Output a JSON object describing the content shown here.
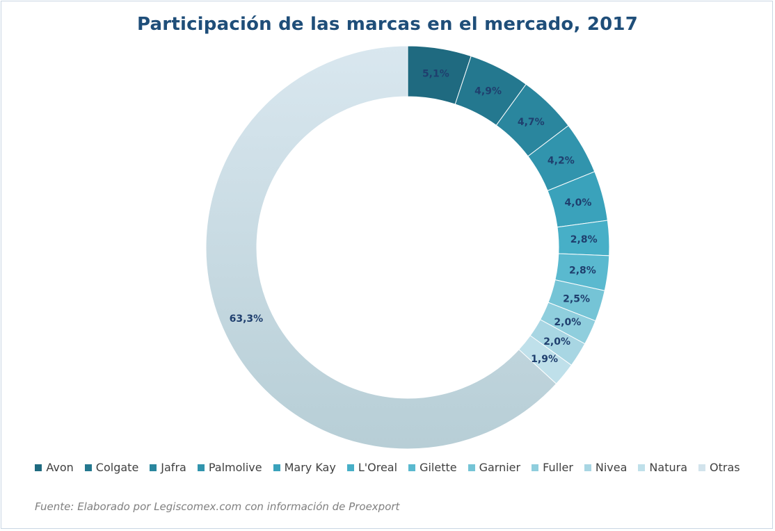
{
  "chart_data": {
    "type": "pie",
    "title": "Participación de las marcas en el mercado, 2017",
    "categories": [
      "Avon",
      "Colgate",
      "Jafra",
      "Palmolive",
      "Mary Kay",
      "L'Oreal",
      "Gilette",
      "Garnier",
      "Fuller",
      "Nivea",
      "Natura",
      "Otras"
    ],
    "values": [
      5.1,
      4.9,
      4.7,
      4.2,
      4.0,
      2.8,
      2.8,
      2.5,
      2.0,
      2.0,
      1.9,
      63.3
    ],
    "data_labels": [
      "5,1%",
      "4,9%",
      "4,7%",
      "4,2%",
      "4,0%",
      "2,8%",
      "2,8%",
      "2,5%",
      "2,0%",
      "2,0%",
      "1,9%",
      "63,3%"
    ],
    "colors": [
      "#1f6a80",
      "#24788f",
      "#2a869e",
      "#3194ad",
      "#3aa2bb",
      "#47afc7",
      "#5ab9cf",
      "#75c4d6",
      "#8fcedd",
      "#a8d6e3",
      "#bfe0ea",
      "#d2e3ec"
    ],
    "legend_position": "bottom",
    "donut": true
  },
  "source": "Fuente: Elaborado por Legiscomex.com con información de Proexport"
}
